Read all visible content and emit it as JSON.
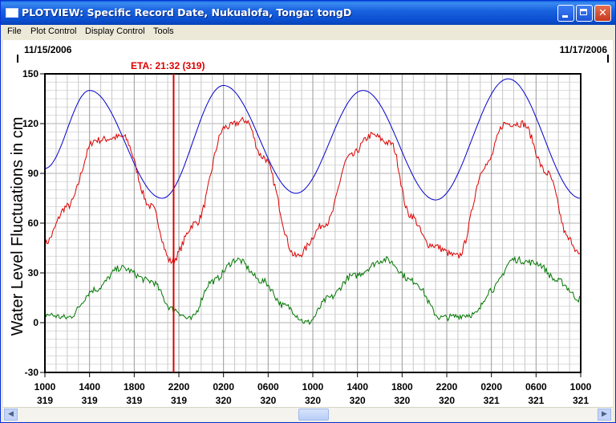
{
  "window": {
    "title": "PLOTVIEW: Specific Record Date, Nukualofa, Tonga: tongD",
    "controls": {
      "minimize": "_",
      "maximize": "□",
      "close": "✕"
    }
  },
  "menu": [
    "File",
    "Plot Control",
    "Display Control",
    "Tools"
  ],
  "plot": {
    "date_left": "11/15/2006",
    "date_right": "11/17/2006",
    "eta_label": "ETA: 21:32 (319)",
    "ylabel": "Water Level Fluctuations in cm",
    "y_ticks": [
      "150",
      "120",
      "90",
      "60",
      "30",
      "0",
      "-30"
    ],
    "x_ticks": [
      {
        "time": "1000",
        "day": "319"
      },
      {
        "time": "1400",
        "day": "319"
      },
      {
        "time": "1800",
        "day": "319"
      },
      {
        "time": "2200",
        "day": "319"
      },
      {
        "time": "0200",
        "day": "320"
      },
      {
        "time": "0600",
        "day": "320"
      },
      {
        "time": "1000",
        "day": "320"
      },
      {
        "time": "1400",
        "day": "320"
      },
      {
        "time": "1800",
        "day": "320"
      },
      {
        "time": "2200",
        "day": "320"
      },
      {
        "time": "0200",
        "day": "321"
      },
      {
        "time": "0600",
        "day": "321"
      },
      {
        "time": "1000",
        "day": "321"
      }
    ]
  },
  "chart_data": {
    "type": "line",
    "ylabel": "Water Level Fluctuations in cm",
    "ylim": [
      -30,
      150
    ],
    "x_hours_range": [
      0,
      48
    ],
    "grid": true,
    "eta_marker_hours": 11.53,
    "colors": {
      "predicted": "#0000cc",
      "observed": "#dd0000",
      "residual": "#007700",
      "eta": "#dd0000"
    },
    "series": [
      {
        "x": [
          0,
          4,
          10.5,
          16,
          22.5,
          28.5,
          35,
          41.5,
          48
        ],
        "values": [
          93,
          140,
          75,
          143,
          78,
          140,
          74,
          147,
          75
        ]
      },
      {
        "x": [
          0,
          2,
          4.5,
          7,
          9.5,
          11.3,
          13.5,
          16.2,
          18,
          19.5,
          22.5,
          25.2,
          27.3,
          29.3,
          31,
          32.7,
          34.5,
          37,
          39.5,
          41.2,
          42.8,
          45,
          47,
          48
        ],
        "values": [
          48,
          70,
          110,
          112,
          70,
          37,
          60,
          118,
          122,
          100,
          40,
          60,
          100,
          113,
          108,
          65,
          47,
          40,
          95,
          120,
          120,
          90,
          50,
          40
        ]
      },
      {
        "x": [
          0,
          2,
          4.5,
          6.8,
          9.5,
          11.5,
          13,
          15,
          17.2,
          19.5,
          21.5,
          23.5,
          25.5,
          27.5,
          30.5,
          33,
          35.5,
          38.5,
          40,
          42,
          44,
          46,
          48
        ],
        "values": [
          5,
          3,
          20,
          33,
          25,
          8,
          2,
          25,
          38,
          25,
          10,
          0,
          15,
          28,
          38,
          25,
          3,
          5,
          20,
          38,
          36,
          25,
          14
        ]
      }
    ]
  }
}
